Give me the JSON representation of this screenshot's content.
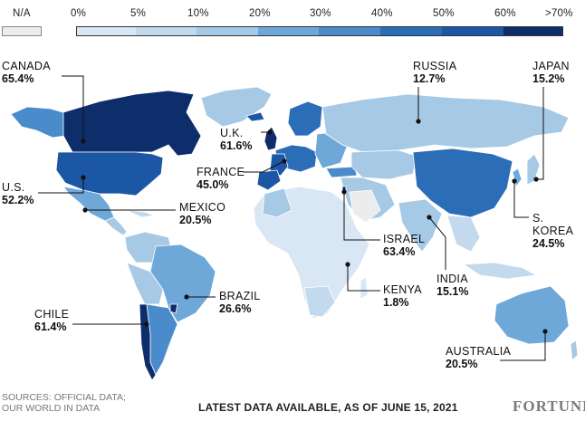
{
  "legend": {
    "na_label": "N/A",
    "ticks": [
      "0%",
      "5%",
      "10%",
      "20%",
      "30%",
      "40%",
      "50%",
      "60%",
      ">70%"
    ],
    "colors": [
      "#d9e7f4",
      "#c2d9ee",
      "#a6c9e6",
      "#6ea8d9",
      "#4a8ccb",
      "#2b6db7",
      "#1c57a5",
      "#0d2d6b"
    ],
    "na_color": "#ececec"
  },
  "countries": [
    {
      "name": "CANADA",
      "value": "65.4%"
    },
    {
      "name": "U.S.",
      "value": "52.2%"
    },
    {
      "name": "MEXICO",
      "value": "20.5%"
    },
    {
      "name": "CHILE",
      "value": "61.4%"
    },
    {
      "name": "BRAZIL",
      "value": "26.6%"
    },
    {
      "name": "U.K.",
      "value": "61.6%"
    },
    {
      "name": "FRANCE",
      "value": "45.0%"
    },
    {
      "name": "RUSSIA",
      "value": "12.7%"
    },
    {
      "name": "JAPAN",
      "value": "15.2%"
    },
    {
      "name": "ISRAEL",
      "value": "63.4%"
    },
    {
      "name": "KENYA",
      "value": "1.8%"
    },
    {
      "name": "INDIA",
      "value": "15.1%"
    },
    {
      "name": "S. KOREA",
      "value": "24.5%"
    },
    {
      "name": "AUSTRALIA",
      "value": "20.5%"
    }
  ],
  "footer": {
    "sources_line1": "SOURCES: OFFICIAL DATA;",
    "sources_line2": "OUR WORLD IN DATA",
    "note": "LATEST DATA AVAILABLE, AS OF JUNE 15, 2021",
    "brand": "FORTUNE"
  }
}
